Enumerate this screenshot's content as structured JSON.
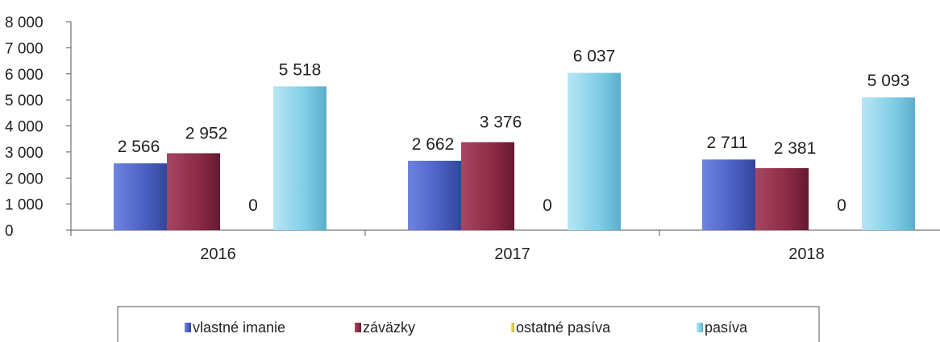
{
  "chart_data": {
    "type": "bar",
    "title": "",
    "xlabel": "",
    "ylabel": "",
    "categories": [
      "2016",
      "2017",
      "2018"
    ],
    "ylim": [
      0,
      8000
    ],
    "yticks": [
      0,
      1000,
      2000,
      3000,
      4000,
      5000,
      6000,
      7000,
      8000
    ],
    "ytick_labels": [
      "0",
      "1 000",
      "2 000",
      "3 000",
      "4 000",
      "5 000",
      "6 000",
      "7 000",
      "8 000"
    ],
    "grid": false,
    "legend_position": "bottom",
    "series": [
      {
        "name": "vlastné imanie",
        "color": "#4a5fc1",
        "values": [
          2566,
          2662,
          2711
        ],
        "labels": [
          "2 566",
          "2 662",
          "2 711"
        ]
      },
      {
        "name": "záväzky",
        "color": "#8b2a45",
        "values": [
          2952,
          3376,
          2381
        ],
        "labels": [
          "2 952",
          "3 376",
          "2 381"
        ]
      },
      {
        "name": "ostatné pasíva",
        "color": "#e8d23a",
        "values": [
          0,
          0,
          0
        ],
        "labels": [
          "0",
          "0",
          "0"
        ]
      },
      {
        "name": "pasíva",
        "color": "#7fcde6",
        "values": [
          5518,
          6037,
          5093
        ],
        "labels": [
          "5 518",
          "6 037",
          "5 093"
        ]
      }
    ]
  }
}
